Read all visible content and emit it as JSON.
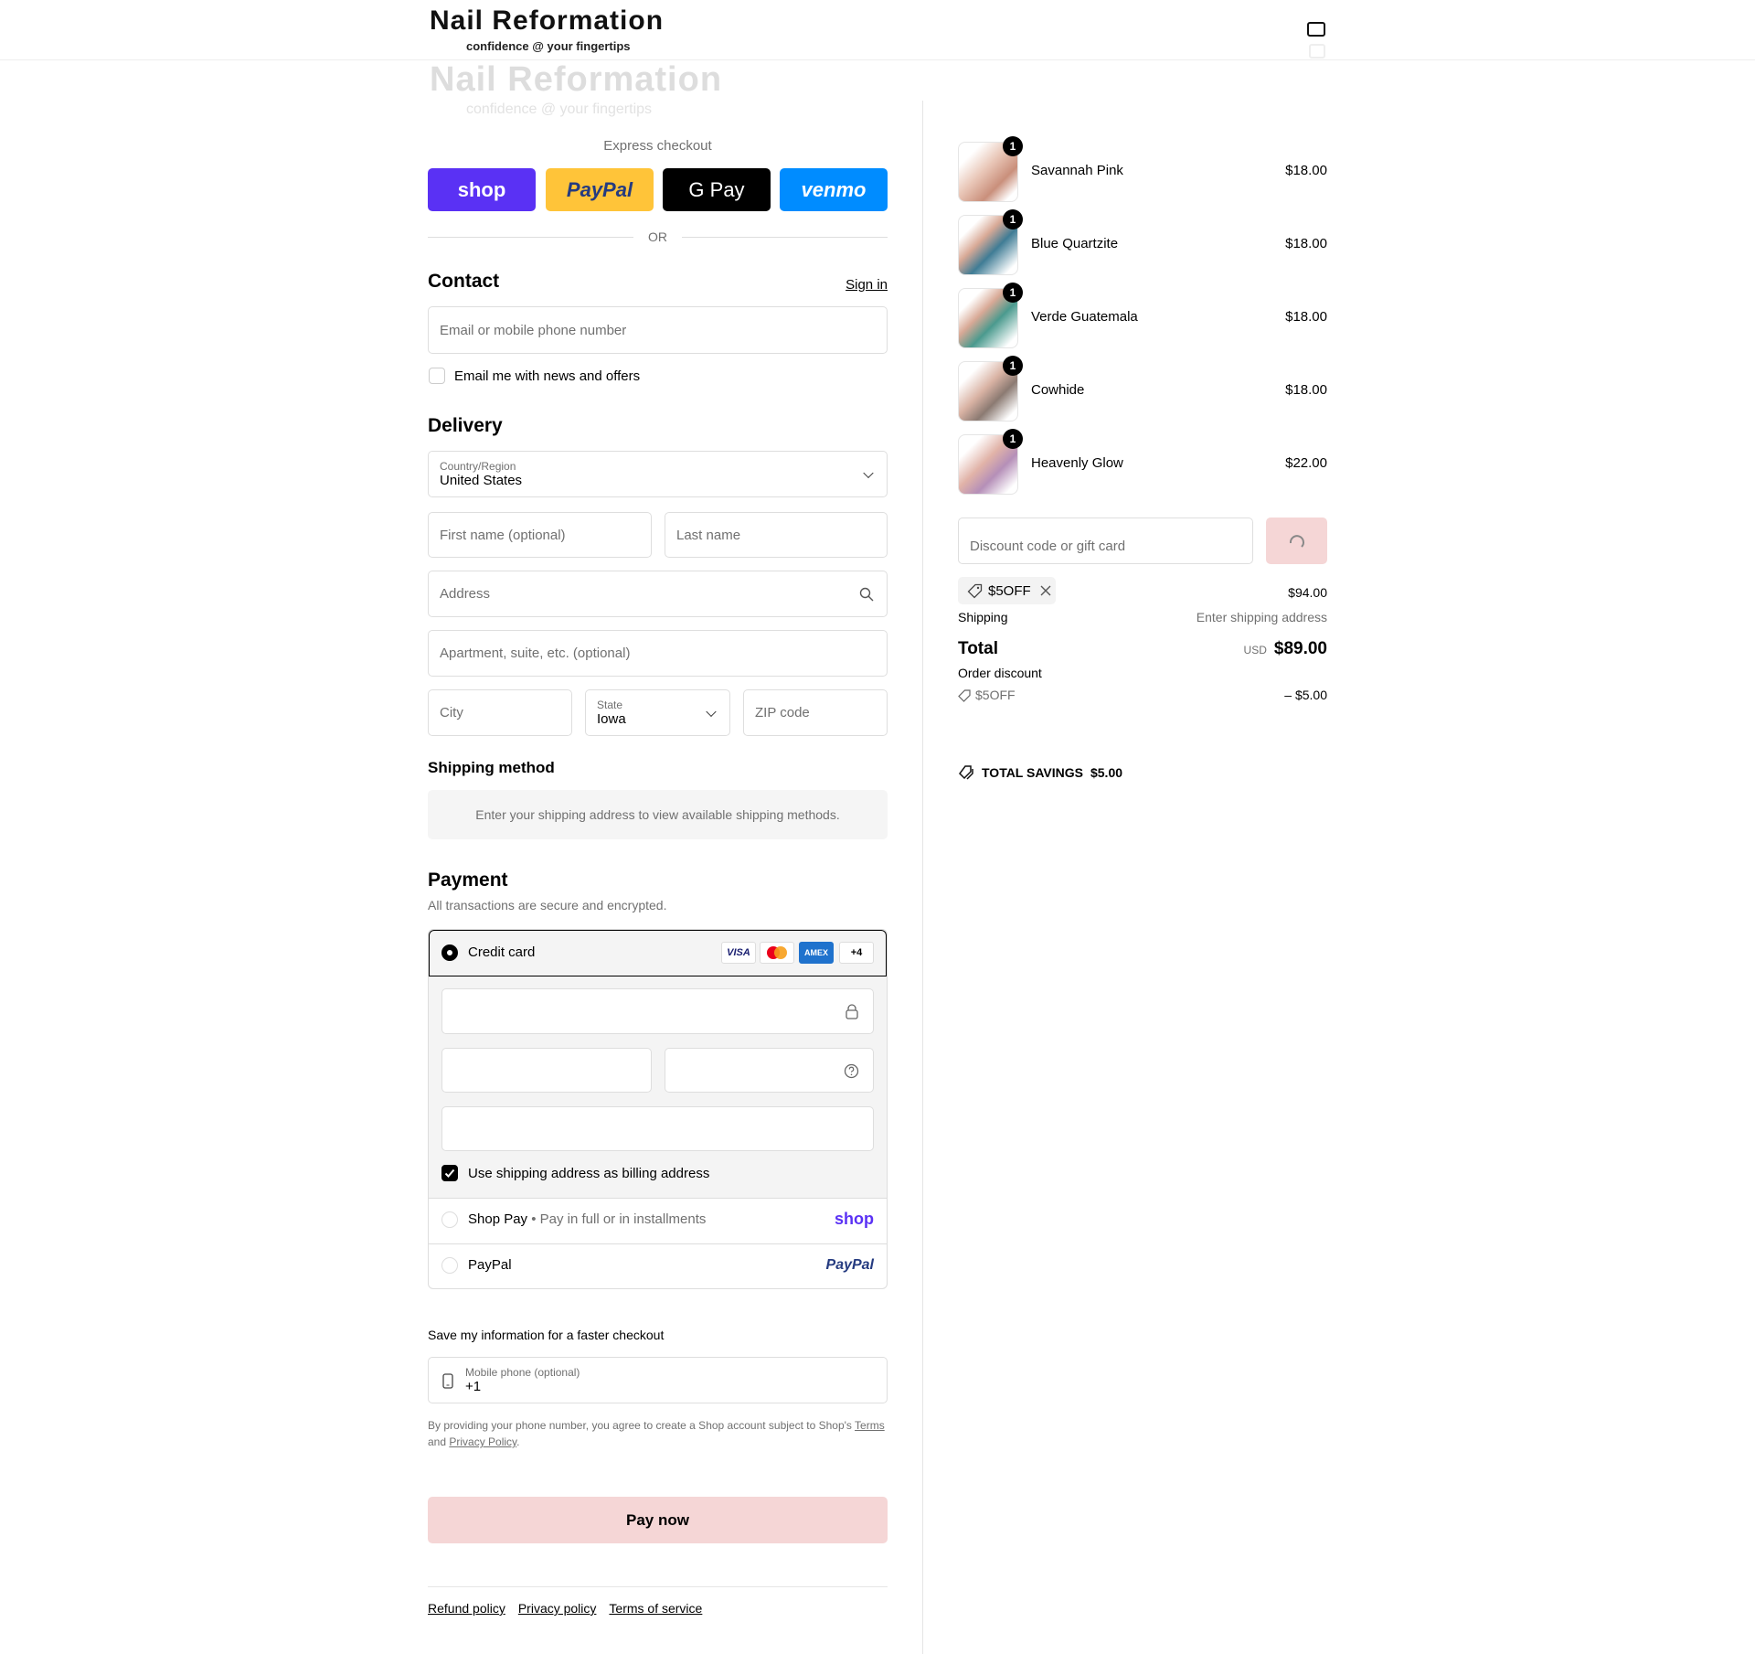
{
  "header": {
    "brand": "Nail Reformation",
    "tagline": "confidence @ your fingertips",
    "cart_icon": "shopping-bag-icon"
  },
  "express": {
    "title": "Express checkout",
    "buttons": [
      {
        "label": "shop",
        "color": "#5a31f4"
      },
      {
        "label": "PayPal",
        "color": "#ffc439"
      },
      {
        "label": "G Pay",
        "color": "#000000"
      },
      {
        "label": "venmo",
        "color": "#008cff"
      }
    ],
    "or": "OR"
  },
  "contact": {
    "title": "Contact",
    "sign_in": "Sign in",
    "email_placeholder": "Email or mobile phone number",
    "news_label": "Email me with news and offers",
    "news_checked": false
  },
  "delivery": {
    "title": "Delivery",
    "country_label": "Country/Region",
    "country_value": "United States",
    "first_name_placeholder": "First name (optional)",
    "last_name_placeholder": "Last name",
    "address_placeholder": "Address",
    "apartment_placeholder": "Apartment, suite, etc. (optional)",
    "city_placeholder": "City",
    "state_label": "State",
    "state_value": "Iowa",
    "zip_placeholder": "ZIP code"
  },
  "shipping_method": {
    "title": "Shipping method",
    "message": "Enter your shipping address to view available shipping methods."
  },
  "payment": {
    "title": "Payment",
    "subtitle": "All transactions are secure and encrypted.",
    "credit_card_label": "Credit card",
    "card_brands": [
      "VISA",
      "Mastercard",
      "AMEX",
      "+4"
    ],
    "billing_label": "Use shipping address as billing address",
    "billing_checked": true,
    "shop_pay_label": "Shop Pay",
    "shop_pay_desc": "Pay in full or in installments",
    "shop_logo": "shop",
    "paypal_label": "PayPal",
    "paypal_logo": "PayPal",
    "selected": "Credit card"
  },
  "save_info": {
    "title": "Save my information for a faster checkout",
    "phone_label": "Mobile phone (optional)",
    "phone_value": "+1",
    "legal_prefix": "By providing your phone number, you agree to create a Shop account subject to Shop's",
    "terms": "Terms",
    "and": "and",
    "privacy": "Privacy Policy",
    "period": "."
  },
  "pay_now": "Pay now",
  "footer": {
    "links": [
      "Refund policy",
      "Privacy policy",
      "Terms of service"
    ]
  },
  "summary": {
    "items": [
      {
        "name": "Savannah Pink",
        "qty": "1",
        "price": "$18.00"
      },
      {
        "name": "Blue Quartzite",
        "qty": "1",
        "price": "$18.00"
      },
      {
        "name": "Verde Guatemala",
        "qty": "1",
        "price": "$18.00"
      },
      {
        "name": "Cowhide",
        "qty": "1",
        "price": "$18.00"
      },
      {
        "name": "Heavenly Glow",
        "qty": "1",
        "price": "$22.00"
      }
    ],
    "discount_placeholder": "Discount code or gift card",
    "applied_code": "$5OFF",
    "subtotal": "$94.00",
    "shipping_label": "Shipping",
    "shipping_value": "Enter shipping address",
    "total_label": "Total",
    "currency": "USD",
    "total": "$89.00",
    "order_discount_label": "Order discount",
    "discount_code": "$5OFF",
    "discount_value": "– $5.00",
    "savings_label": "TOTAL SAVINGS",
    "savings_value": "$5.00",
    "apply_color": "#f5d6d6"
  }
}
